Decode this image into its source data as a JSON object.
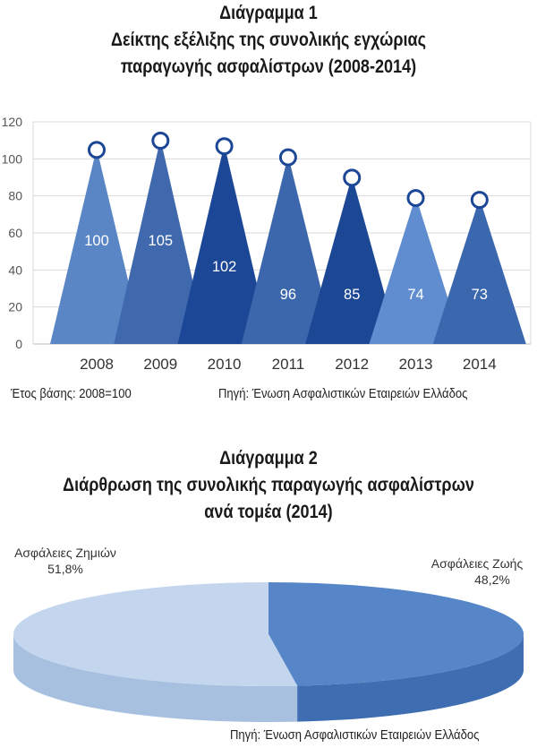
{
  "chart1": {
    "title_lines": [
      "Διάγραμμα 1",
      "Δείκτης εξέλιξης της συνολικής εγχώριας",
      "παραγωγής ασφαλίστρων (2008-2014)"
    ],
    "base_note": "Έτος βάσης: 2008=100",
    "source": "Πηγή: Ένωση  Ασφαλιστικών Εταιρειών Ελλάδος"
  },
  "chart2": {
    "title_lines": [
      "Διάγραμμα 2",
      "Διάρθρωση της συνολικής παραγωγής ασφαλίστρων",
      "ανά τομέα (2014)"
    ],
    "source": "Πηγή: Ένωση  Ασφαλιστικών Εταιρειών Ελλάδος"
  },
  "chart_data": [
    {
      "type": "bar",
      "shape": "triangle",
      "categories": [
        "2008",
        "2009",
        "2010",
        "2011",
        "2012",
        "2013",
        "2014"
      ],
      "values": [
        100,
        105,
        102,
        96,
        85,
        74,
        73
      ],
      "data_labels": [
        "100",
        "105",
        "102",
        "96",
        "85",
        "74",
        "73"
      ],
      "ylim": [
        0,
        120
      ],
      "yticks": [
        0,
        20,
        40,
        60,
        80,
        100,
        120
      ],
      "grid": true,
      "colors": [
        "#5a86c6",
        "#3f68ad",
        "#1c4796",
        "#3c67ad",
        "#1b4795",
        "#5f8dd0",
        "#3a67ae"
      ],
      "marker_color": "#1c4796"
    },
    {
      "type": "pie",
      "style": "3d",
      "slices": [
        {
          "label": "Ασφάλειες Ζημιών",
          "value": 51.8,
          "value_label": "51,8%",
          "color": "#c3d6ee",
          "side_color": "#a7c0e0"
        },
        {
          "label": "Ασφάλειες Ζωής",
          "value": 48.2,
          "value_label": "48,2%",
          "color": "#5686c8",
          "side_color": "#3e6db2"
        }
      ]
    }
  ]
}
